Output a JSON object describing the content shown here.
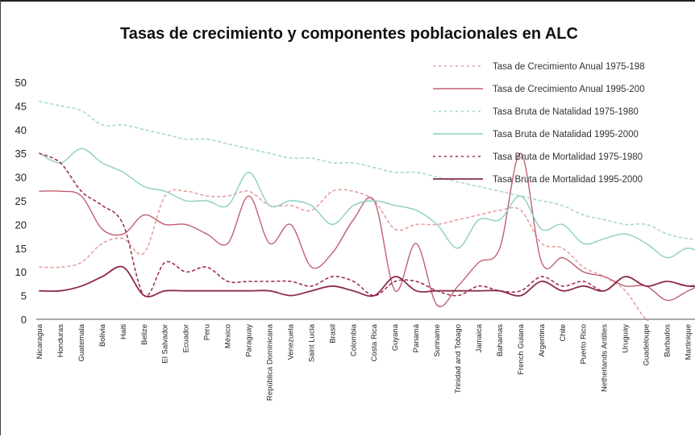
{
  "chart_data": {
    "type": "line",
    "title": "Tasas de crecimiento y componentes poblacionales en ALC",
    "xlabel": "",
    "ylabel": "",
    "ylim": [
      0,
      50
    ],
    "yticks": [
      0,
      5,
      10,
      15,
      20,
      25,
      30,
      35,
      40,
      45,
      50
    ],
    "grid": false,
    "legend_position": "top-right",
    "categories": [
      "Nicaragua",
      "Honduras",
      "Guatemala",
      "Bolivia",
      "Haiti",
      "Belize",
      "El Salvador",
      "Ecuador",
      "Peru",
      "México",
      "Paraguay",
      "República Dominicana",
      "Venezuela",
      "Saint Lucia",
      "Brasil",
      "Colombia",
      "Costa Rica",
      "Guyana",
      "Panamá",
      "Suriname",
      "Trinidad and Tobago",
      "Jamaica",
      "Bahamas",
      "French Guiana",
      "Argentina",
      "Chile",
      "Puerto Rico",
      "Netherlands Antilles",
      "Uruguay",
      "Guadeloupe",
      "Barbados",
      "Martinique",
      ""
    ],
    "series": [
      {
        "name": "Tasa de Crecimiento Anual 1975-198",
        "color": "#e8a0a0",
        "dash": "dot",
        "width": 1.6,
        "values": [
          11,
          11,
          12,
          16,
          17,
          14,
          26,
          27,
          26,
          26,
          27,
          24,
          24,
          23,
          27,
          27,
          25,
          19,
          20,
          20,
          21,
          22,
          23,
          23,
          16,
          15,
          11,
          9,
          6,
          0,
          -2,
          -2,
          -2
        ]
      },
      {
        "name": "Tasa de Crecimiento Anual 1995-200",
        "color": "#c06070",
        "dash": "solid",
        "width": 1.4,
        "values": [
          27,
          27,
          26,
          19,
          18,
          22,
          20,
          20,
          18,
          16,
          26,
          16,
          20,
          11,
          14,
          21,
          25,
          6,
          16,
          3,
          7,
          12,
          15,
          35,
          12,
          13,
          10,
          9,
          7,
          7,
          4,
          6,
          8
        ]
      },
      {
        "name": "Tasa Bruta de Natalidad 1975-1980",
        "color": "#a8d8cc",
        "dash": "dot",
        "width": 1.6,
        "values": [
          46,
          45,
          44,
          41,
          41,
          40,
          39,
          38,
          38,
          37,
          36,
          35,
          34,
          34,
          33,
          33,
          32,
          31,
          31,
          30,
          29,
          28,
          27,
          26,
          25,
          24,
          22,
          21,
          20,
          20,
          18,
          17,
          17
        ]
      },
      {
        "name": "Tasa Bruta de Natalidad 1995-2000",
        "color": "#8ccfc0",
        "dash": "solid",
        "width": 1.4,
        "values": [
          35,
          33,
          36,
          33,
          31,
          28,
          27,
          25,
          25,
          24,
          31,
          24,
          25,
          24,
          20,
          24,
          25,
          24,
          23,
          20,
          15,
          21,
          21,
          26,
          19,
          20,
          16,
          17,
          18,
          16,
          13,
          15,
          13
        ]
      },
      {
        "name": "Tasa Bruta de Mortalidad 1975-1980",
        "color": "#a03050",
        "dash": "dot",
        "width": 1.6,
        "values": [
          35,
          33,
          27,
          24,
          20,
          5,
          12,
          10,
          11,
          8,
          8,
          8,
          8,
          7,
          9,
          8,
          5,
          8,
          8,
          6,
          5,
          7,
          6,
          6,
          9,
          7,
          8,
          6,
          9,
          7,
          8,
          7,
          8
        ]
      },
      {
        "name": "Tasa Bruta de Mortalidad 1995-2000",
        "color": "#8c2c48",
        "dash": "solid",
        "width": 1.8,
        "values": [
          6,
          6,
          7,
          9,
          11,
          5,
          6,
          6,
          6,
          6,
          6,
          6,
          5,
          6,
          7,
          6,
          5,
          9,
          6,
          6,
          6,
          6,
          6,
          5,
          8,
          6,
          7,
          6,
          9,
          7,
          8,
          7,
          7
        ]
      }
    ]
  }
}
